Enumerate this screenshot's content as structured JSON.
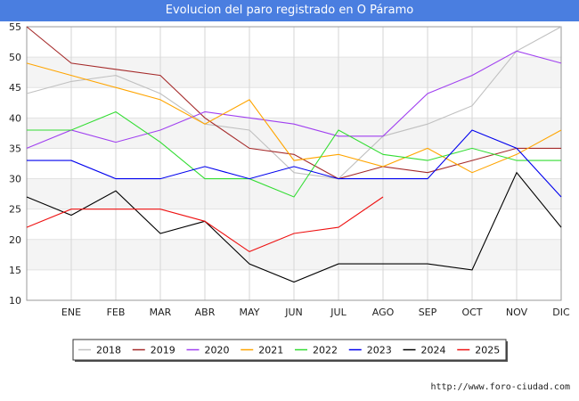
{
  "chart_data": {
    "type": "line",
    "title": "Evolucion del paro registrado en O Páramo",
    "categories": [
      "",
      "ENE",
      "FEB",
      "MAR",
      "ABR",
      "MAY",
      "JUN",
      "JUL",
      "AGO",
      "SEP",
      "OCT",
      "NOV",
      "DIC"
    ],
    "ylim": [
      10,
      55
    ],
    "yticks": [
      10,
      15,
      20,
      25,
      30,
      35,
      40,
      45,
      50,
      55
    ],
    "xlabel": "",
    "ylabel": "",
    "grid": true,
    "legend_position": "bottom",
    "series": [
      {
        "name": "2018",
        "color": "#c0c0c0",
        "values": [
          44,
          46,
          47,
          44,
          39,
          38,
          31,
          30,
          37,
          39,
          42,
          51,
          55
        ]
      },
      {
        "name": "2019",
        "color": "#a52a2a",
        "values": [
          55,
          49,
          48,
          47,
          40,
          35,
          34,
          30,
          32,
          31,
          33,
          35,
          35
        ]
      },
      {
        "name": "2020",
        "color": "#a040f0",
        "values": [
          35,
          38,
          36,
          38,
          41,
          40,
          39,
          37,
          37,
          44,
          47,
          51,
          49
        ]
      },
      {
        "name": "2021",
        "color": "#ffa500",
        "values": [
          49,
          47,
          45,
          43,
          39,
          43,
          33,
          34,
          32,
          35,
          31,
          34,
          38
        ]
      },
      {
        "name": "2022",
        "color": "#33dd33",
        "values": [
          38,
          38,
          41,
          36,
          30,
          30,
          27,
          38,
          34,
          33,
          35,
          33,
          33
        ]
      },
      {
        "name": "2023",
        "color": "#0000ee",
        "values": [
          33,
          33,
          30,
          30,
          32,
          30,
          32,
          30,
          30,
          30,
          38,
          35,
          27
        ]
      },
      {
        "name": "2024",
        "color": "#000000",
        "values": [
          27,
          24,
          28,
          21,
          23,
          16,
          13,
          16,
          16,
          16,
          15,
          31,
          22
        ]
      },
      {
        "name": "2025",
        "color": "#ee1111",
        "values": [
          22,
          25,
          25,
          25,
          23,
          18,
          21,
          22,
          27,
          null,
          null,
          null,
          null
        ]
      }
    ]
  },
  "footer": {
    "url": "http://www.foro-ciudad.com"
  }
}
